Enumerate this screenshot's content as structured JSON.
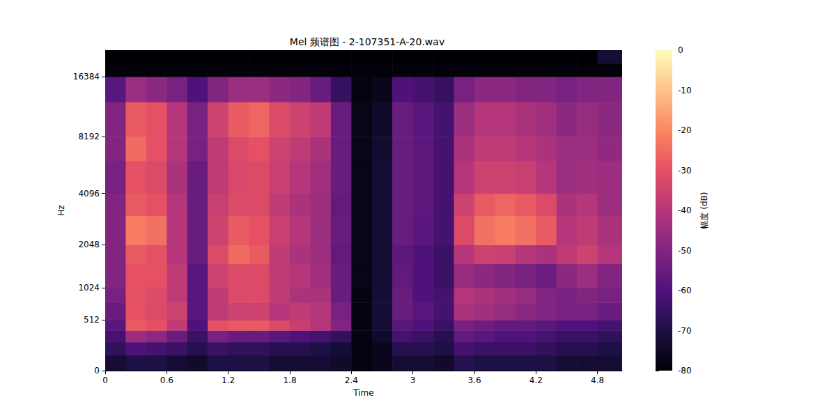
{
  "chart_data": {
    "type": "heatmap",
    "title": "Mel 频谱图 - 2-107351-A-20.wav",
    "xlabel": "Time",
    "ylabel": "Hz",
    "xlim": [
      0,
      5.04
    ],
    "xticks": [
      0,
      0.6,
      1.2,
      1.8,
      2.4,
      3,
      3.6,
      4.2,
      4.8
    ],
    "ylim": [
      0,
      22050
    ],
    "yticks": [
      0,
      512,
      1024,
      2048,
      4096,
      8192,
      16384
    ],
    "time_edges": [
      0,
      0.2,
      0.4,
      0.6,
      0.8,
      1,
      1.2,
      1.4,
      1.6,
      1.8,
      2,
      2.2,
      2.4,
      2.6,
      2.8,
      3,
      3.2,
      3.4,
      3.6,
      3.8,
      4,
      4.2,
      4.4,
      4.6,
      4.8,
      5.04
    ],
    "freq_edges": [
      0,
      128,
      256,
      384,
      512,
      768,
      1024,
      1536,
      2048,
      3072,
      4096,
      6144,
      8192,
      12288,
      16384,
      19000,
      22050
    ],
    "cells": [
      [
        -72,
        -70,
        -70,
        -72,
        -74,
        -70,
        -70,
        -70,
        -72,
        -72,
        -72,
        -74,
        -78,
        -76,
        -72,
        -72,
        -74,
        -68,
        -70,
        -70,
        -70,
        -70,
        -72,
        -72,
        -72
      ],
      [
        -66,
        -60,
        -62,
        -64,
        -68,
        -64,
        -66,
        -66,
        -68,
        -68,
        -70,
        -72,
        -78,
        -76,
        -68,
        -68,
        -70,
        -62,
        -64,
        -64,
        -64,
        -66,
        -68,
        -68,
        -70
      ],
      [
        -62,
        -45,
        -48,
        -55,
        -64,
        -52,
        -55,
        -55,
        -58,
        -60,
        -62,
        -66,
        -78,
        -74,
        -62,
        -64,
        -68,
        -56,
        -58,
        -60,
        -60,
        -62,
        -64,
        -64,
        -66
      ],
      [
        -58,
        -28,
        -30,
        -38,
        -60,
        -30,
        -28,
        -28,
        -32,
        -36,
        -40,
        -50,
        -78,
        -72,
        -58,
        -60,
        -64,
        -52,
        -54,
        -56,
        -56,
        -58,
        -60,
        -60,
        -62
      ],
      [
        -55,
        -30,
        -32,
        -35,
        -58,
        -38,
        -35,
        -35,
        -40,
        -38,
        -40,
        -52,
        -78,
        -72,
        -55,
        -58,
        -62,
        -42,
        -44,
        -46,
        -48,
        -50,
        -52,
        -52,
        -55
      ],
      [
        -52,
        -30,
        -32,
        -38,
        -58,
        -38,
        -32,
        -32,
        -38,
        -42,
        -42,
        -55,
        -78,
        -72,
        -55,
        -60,
        -62,
        -40,
        -42,
        -44,
        -46,
        -50,
        -52,
        -50,
        -52
      ],
      [
        -50,
        -30,
        -30,
        -38,
        -58,
        -35,
        -32,
        -32,
        -38,
        -40,
        -44,
        -55,
        -77,
        -72,
        -56,
        -60,
        -64,
        -46,
        -48,
        -50,
        -52,
        -54,
        -48,
        -45,
        -50
      ],
      [
        -50,
        -28,
        -30,
        -40,
        -55,
        -32,
        -25,
        -28,
        -38,
        -42,
        -45,
        -56,
        -77,
        -72,
        -57,
        -60,
        -64,
        -40,
        -35,
        -36,
        -40,
        -42,
        -38,
        -35,
        -40
      ],
      [
        -50,
        -22,
        -24,
        -40,
        -55,
        -35,
        -28,
        -30,
        -36,
        -40,
        -45,
        -55,
        -77,
        -72,
        -55,
        -58,
        -62,
        -32,
        -24,
        -22,
        -24,
        -28,
        -40,
        -38,
        -42
      ],
      [
        -50,
        -28,
        -30,
        -40,
        -55,
        -36,
        -32,
        -32,
        -38,
        -42,
        -45,
        -56,
        -77,
        -72,
        -55,
        -57,
        -62,
        -35,
        -28,
        -26,
        -28,
        -32,
        -42,
        -40,
        -45
      ],
      [
        -52,
        -30,
        -32,
        -42,
        -55,
        -38,
        -33,
        -32,
        -36,
        -40,
        -44,
        -55,
        -77,
        -72,
        -55,
        -57,
        -62,
        -40,
        -35,
        -35,
        -36,
        -40,
        -45,
        -44,
        -45
      ],
      [
        -50,
        -25,
        -30,
        -40,
        -52,
        -38,
        -32,
        -30,
        -35,
        -38,
        -42,
        -55,
        -77,
        -73,
        -55,
        -57,
        -62,
        -42,
        -38,
        -38,
        -40,
        -42,
        -45,
        -45,
        -47
      ],
      [
        -50,
        -28,
        -30,
        -40,
        -52,
        -35,
        -28,
        -26,
        -32,
        -35,
        -38,
        -55,
        -77,
        -74,
        -55,
        -58,
        -62,
        -45,
        -40,
        -40,
        -42,
        -44,
        -48,
        -46,
        -48
      ],
      [
        -58,
        -45,
        -48,
        -52,
        -60,
        -50,
        -45,
        -45,
        -48,
        -50,
        -55,
        -65,
        -78,
        -76,
        -60,
        -62,
        -65,
        -52,
        -48,
        -48,
        -50,
        -50,
        -52,
        -50,
        -50
      ],
      [
        -79,
        -79,
        -79,
        -79,
        -79,
        -79,
        -79,
        -79,
        -79,
        -79,
        -79,
        -79,
        -79,
        -79,
        -79,
        -79,
        -79,
        -79,
        -79,
        -79,
        -79,
        -79,
        -79,
        -79,
        -79
      ],
      [
        -80,
        -80,
        -80,
        -80,
        -80,
        -80,
        -80,
        -80,
        -80,
        -80,
        -80,
        -80,
        -80,
        -80,
        -80,
        -80,
        -80,
        -80,
        -80,
        -80,
        -80,
        -80,
        -80,
        -80,
        -72
      ]
    ],
    "colorbar": {
      "label": "幅度 (dB)",
      "range": [
        -80,
        0
      ],
      "ticks": [
        0,
        -10,
        -20,
        -30,
        -40,
        -50,
        -60,
        -70,
        -80
      ]
    }
  }
}
